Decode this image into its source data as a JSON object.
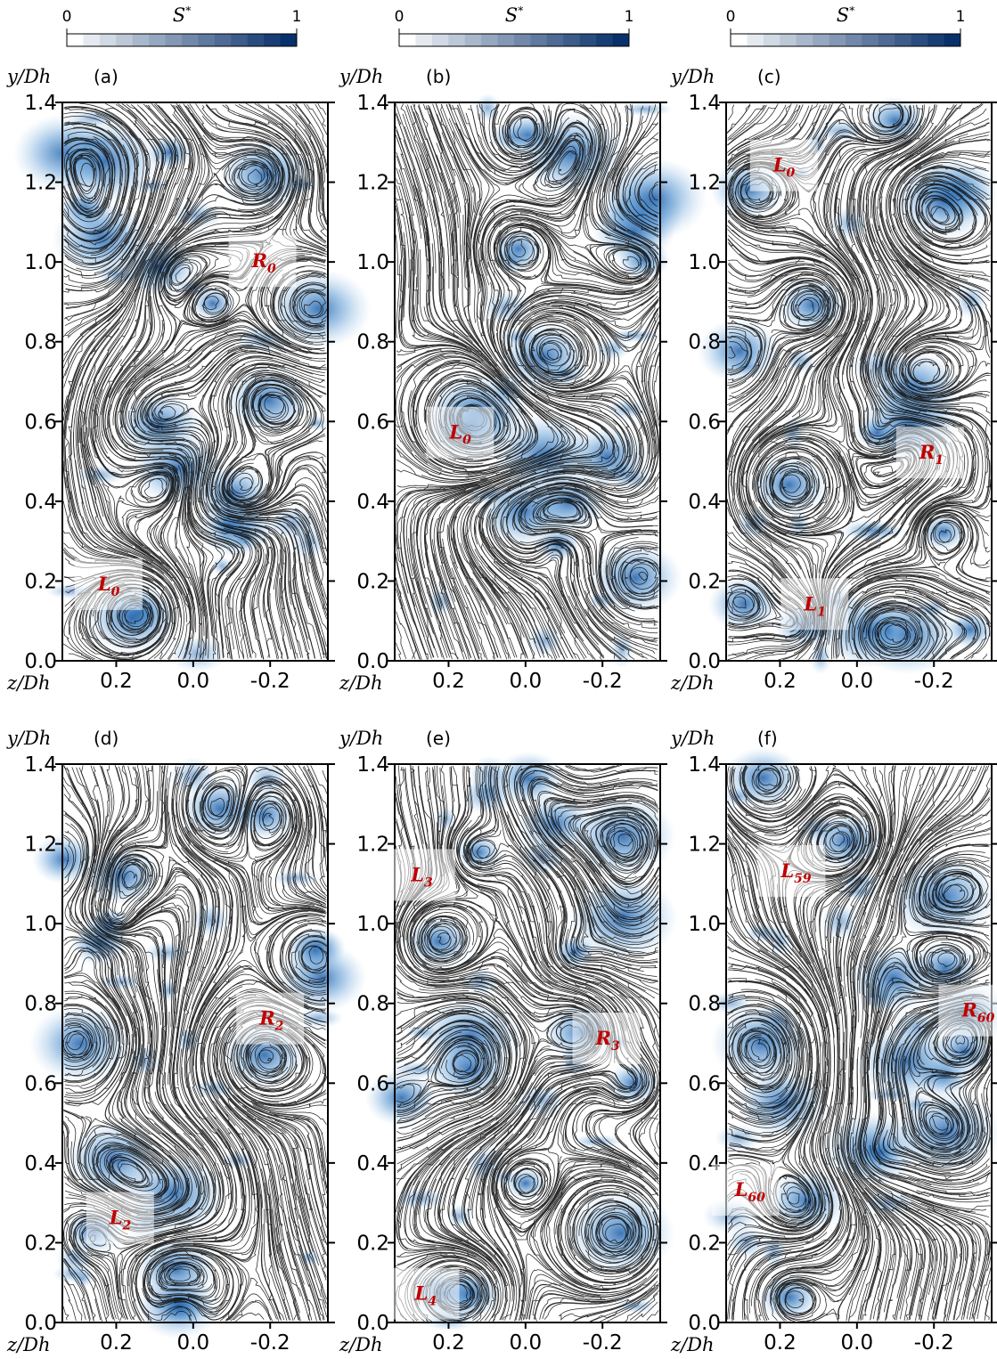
{
  "colorbar": {
    "label": "S",
    "label_sup": "*",
    "lim": [
      0,
      1
    ],
    "ticks": [
      0,
      1
    ],
    "colors": [
      "#ffffff",
      "#08306b"
    ]
  },
  "chart_data": [
    {
      "type": "streamline",
      "panel_label": "(a)",
      "x_label": "z/Dh",
      "y_label": "y/Dh",
      "xlim": [
        0.34,
        -0.35
      ],
      "ylim": [
        0,
        1.4
      ],
      "xticks": [
        0.2,
        {
          "value": 0,
          "label": "0.0"
        },
        -0.2
      ],
      "yticks": [
        {
          "value": 0,
          "label": "0.0"
        },
        0.2,
        0.4,
        0.6,
        0.8,
        {
          "value": 1,
          "label": "1.0"
        },
        1.2,
        1.4
      ],
      "annotations": [
        {
          "text": "R",
          "sub": "0",
          "x": -0.18,
          "y": 1.0
        },
        {
          "text": "L",
          "sub": "0",
          "x": 0.22,
          "y": 0.19
        }
      ]
    },
    {
      "type": "streamline",
      "panel_label": "(b)",
      "x_label": "z/Dh",
      "y_label": "y/Dh",
      "xlim": [
        0.34,
        -0.35
      ],
      "ylim": [
        0,
        1.4
      ],
      "xticks": [
        0.2,
        {
          "value": 0,
          "label": "0.0"
        },
        -0.2
      ],
      "yticks": [
        {
          "value": 0,
          "label": "0.0"
        },
        0.2,
        0.4,
        0.6,
        0.8,
        {
          "value": 1,
          "label": "1.0"
        },
        1.2,
        1.4
      ],
      "annotations": [
        {
          "text": "L",
          "sub": "0",
          "x": 0.17,
          "y": 0.57
        }
      ]
    },
    {
      "type": "streamline",
      "panel_label": "(c)",
      "x_label": "z/Dh",
      "y_label": "y/Dh",
      "xlim": [
        0.34,
        -0.35
      ],
      "ylim": [
        0,
        1.4
      ],
      "xticks": [
        0.2,
        {
          "value": 0,
          "label": "0.0"
        },
        -0.2
      ],
      "yticks": [
        {
          "value": 0,
          "label": "0.0"
        },
        0.2,
        0.4,
        0.6,
        0.8,
        {
          "value": 1,
          "label": "1.0"
        },
        1.2,
        1.4
      ],
      "annotations": [
        {
          "text": "L",
          "sub": "0",
          "x": 0.19,
          "y": 1.24
        },
        {
          "text": "R",
          "sub": "1",
          "x": -0.19,
          "y": 0.52
        },
        {
          "text": "L",
          "sub": "1",
          "x": 0.11,
          "y": 0.14
        }
      ]
    },
    {
      "type": "streamline",
      "panel_label": "(d)",
      "x_label": "z/Dh",
      "y_label": "y/Dh",
      "xlim": [
        0.34,
        -0.35
      ],
      "ylim": [
        0,
        1.4
      ],
      "xticks": [
        0.2,
        {
          "value": 0,
          "label": "0.0"
        },
        -0.2
      ],
      "yticks": [
        {
          "value": 0,
          "label": "0.0"
        },
        0.2,
        0.4,
        0.6,
        0.8,
        {
          "value": 1,
          "label": "1.0"
        },
        1.2,
        1.4
      ],
      "annotations": [
        {
          "text": "R",
          "sub": "2",
          "x": -0.2,
          "y": 0.76
        },
        {
          "text": "L",
          "sub": "2",
          "x": 0.19,
          "y": 0.26
        }
      ]
    },
    {
      "type": "streamline",
      "panel_label": "(e)",
      "x_label": "z/Dh",
      "y_label": "y/Dh",
      "xlim": [
        0.34,
        -0.35
      ],
      "ylim": [
        0,
        1.4
      ],
      "xticks": [
        0.2,
        {
          "value": 0,
          "label": "0.0"
        },
        -0.2
      ],
      "yticks": [
        {
          "value": 0,
          "label": "0.0"
        },
        0.2,
        0.4,
        0.6,
        0.8,
        {
          "value": 1,
          "label": "1.0"
        },
        1.2,
        1.4
      ],
      "annotations": [
        {
          "text": "L",
          "sub": "3",
          "x": 0.27,
          "y": 1.12
        },
        {
          "text": "R",
          "sub": "3",
          "x": -0.21,
          "y": 0.71
        },
        {
          "text": "L",
          "sub": "4",
          "x": 0.26,
          "y": 0.07
        }
      ]
    },
    {
      "type": "streamline",
      "panel_label": "(f)",
      "x_label": "z/Dh",
      "y_label": "y/Dh",
      "xlim": [
        0.34,
        -0.35
      ],
      "ylim": [
        0,
        1.4
      ],
      "xticks": [
        0.2,
        {
          "value": 0,
          "label": "0.0"
        },
        -0.2
      ],
      "yticks": [
        {
          "value": 0,
          "label": "0.0"
        },
        0.2,
        0.4,
        0.6,
        0.8,
        {
          "value": 1,
          "label": "1.0"
        },
        1.2,
        1.4
      ],
      "annotations": [
        {
          "text": "L",
          "sub": "59",
          "x": 0.17,
          "y": 1.13
        },
        {
          "text": "R",
          "sub": "60",
          "x": -0.3,
          "y": 0.78
        },
        {
          "text": "L",
          "sub": "60",
          "x": 0.29,
          "y": 0.33
        }
      ]
    }
  ]
}
